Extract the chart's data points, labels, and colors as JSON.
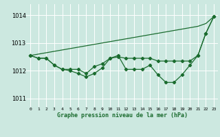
{
  "x": [
    0,
    1,
    2,
    3,
    4,
    5,
    6,
    7,
    8,
    9,
    10,
    11,
    12,
    13,
    14,
    15,
    16,
    17,
    18,
    19,
    20,
    21,
    22,
    23
  ],
  "line1": [
    1012.55,
    1012.45,
    1012.45,
    1012.2,
    1012.05,
    1012.05,
    1012.05,
    1011.9,
    1012.15,
    1012.25,
    1012.45,
    1012.5,
    1012.45,
    1012.45,
    1012.45,
    1012.45,
    1012.35,
    1012.35,
    1012.35,
    1012.35,
    1012.35,
    1012.55,
    1013.35,
    1013.95
  ],
  "line2": [
    1012.55,
    1012.45,
    1012.45,
    1012.2,
    1012.05,
    1012.0,
    1011.9,
    1011.78,
    1011.9,
    1012.1,
    1012.45,
    1012.55,
    1012.05,
    1012.05,
    1012.05,
    1012.2,
    1011.85,
    1011.58,
    1011.58,
    1011.85,
    1012.2,
    1012.55,
    1013.35,
    1013.95
  ],
  "line3": [
    1012.55,
    1012.6,
    1012.65,
    1012.7,
    1012.75,
    1012.8,
    1012.85,
    1012.9,
    1012.95,
    1013.0,
    1013.05,
    1013.1,
    1013.15,
    1013.2,
    1013.25,
    1013.3,
    1013.35,
    1013.4,
    1013.45,
    1013.5,
    1013.55,
    1013.6,
    1013.7,
    1013.95
  ],
  "bg_color": "#cce8e0",
  "grid_color": "#ffffff",
  "line_color": "#1a6b2e",
  "ylabel_ticks": [
    1011,
    1012,
    1013,
    1014
  ],
  "xlabel_label": "Graphe pression niveau de la mer (hPa)",
  "ylim": [
    1010.7,
    1014.4
  ],
  "xlim": [
    -0.5,
    23.5
  ],
  "xtick_labels": [
    "0",
    "1",
    "2",
    "3",
    "4",
    "5",
    "6",
    "7",
    "8",
    "9",
    "10",
    "11",
    "12",
    "13",
    "14",
    "15",
    "16",
    "17",
    "18",
    "19",
    "20",
    "21",
    "22",
    "23"
  ]
}
